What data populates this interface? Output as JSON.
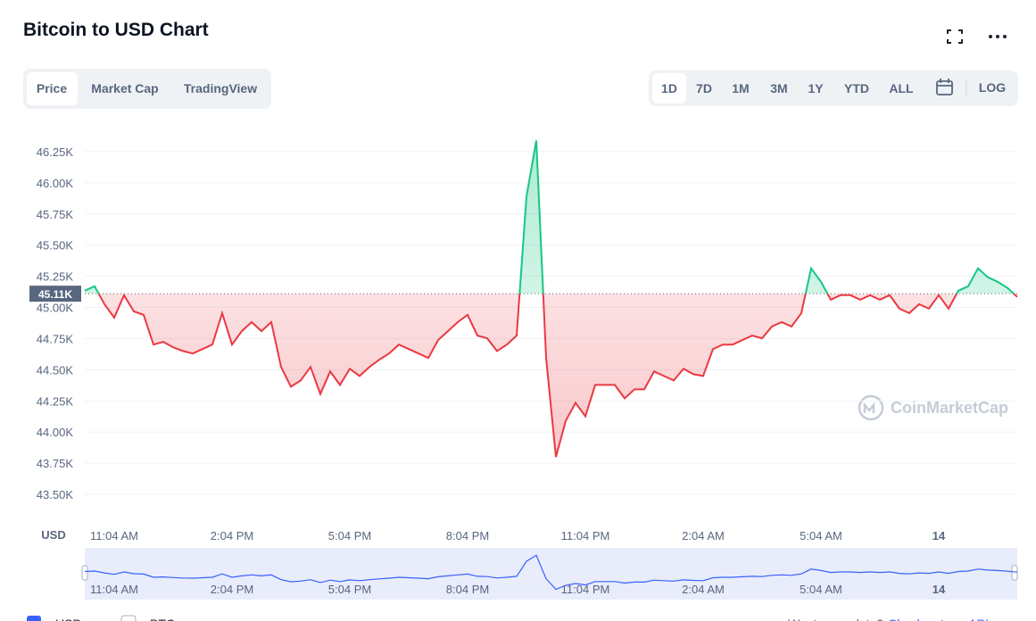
{
  "header": {
    "title": "Bitcoin to USD Chart"
  },
  "tabs": [
    "Price",
    "Market Cap",
    "TradingView"
  ],
  "ranges": [
    "1D",
    "7D",
    "1M",
    "3M",
    "1Y",
    "YTD",
    "ALL"
  ],
  "log": "LOG",
  "watermark": "CoinMarketCap",
  "chart_data": {
    "type": "line",
    "y_axis_label": "USD",
    "categories": [
      null,
      null,
      null,
      "11:04 AM",
      null,
      null,
      null,
      null,
      null,
      null,
      null,
      null,
      null,
      null,
      null,
      "2:04 PM",
      null,
      null,
      null,
      null,
      null,
      null,
      null,
      null,
      null,
      null,
      null,
      "5:04 PM",
      null,
      null,
      null,
      null,
      null,
      null,
      null,
      null,
      null,
      null,
      null,
      "8:04 PM",
      null,
      null,
      null,
      null,
      null,
      null,
      null,
      null,
      null,
      null,
      null,
      "11:04 PM",
      null,
      null,
      null,
      null,
      null,
      null,
      null,
      null,
      null,
      null,
      null,
      "2:04 AM",
      null,
      null,
      null,
      null,
      null,
      null,
      null,
      null,
      null,
      null,
      null,
      "5:04 AM",
      null,
      null,
      null,
      null,
      null,
      null,
      null,
      null,
      null,
      null,
      null,
      "14",
      null,
      null,
      null,
      null,
      null,
      null,
      null,
      null
    ],
    "series": [
      {
        "name": "USD",
        "up_color": "#16c784",
        "down_color": "#ea3943",
        "values": [
          45134,
          45170,
          45026,
          44918,
          45098,
          44968,
          44940,
          44702,
          44724,
          44680,
          44650,
          44630,
          44666,
          44702,
          44954,
          44702,
          44810,
          44882,
          44810,
          44882,
          44522,
          44364,
          44414,
          44522,
          44306,
          44486,
          44378,
          44508,
          44450,
          44522,
          44580,
          44630,
          44702,
          44666,
          44630,
          44594,
          44738,
          44810,
          44882,
          44940,
          44774,
          44752,
          44650,
          44702,
          44774,
          45890,
          46340,
          44594,
          43800,
          44090,
          44234,
          44126,
          44378,
          44378,
          44378,
          44270,
          44342,
          44342,
          44486,
          44450,
          44414,
          44508,
          44464,
          44450,
          44666,
          44702,
          44702,
          44738,
          44774,
          44752,
          44846,
          44882,
          44846,
          44954,
          45314,
          45206,
          45062,
          45098,
          45098,
          45062,
          45098,
          45062,
          45098,
          44990,
          44954,
          45026,
          44990,
          45098,
          44990,
          45134,
          45170,
          45314,
          45242,
          45206,
          45156,
          45084
        ]
      }
    ],
    "baseline": {
      "value": 45110,
      "label": "45.11K"
    },
    "navigator_color": "#3861fb",
    "ylim": [
      43300,
      46500
    ],
    "yticks": [
      {
        "value": 43500,
        "label": "43.50K"
      },
      {
        "value": 43750,
        "label": "43.75K"
      },
      {
        "value": 44000,
        "label": "44.00K"
      },
      {
        "value": 44250,
        "label": "44.25K"
      },
      {
        "value": 44500,
        "label": "44.50K"
      },
      {
        "value": 44750,
        "label": "44.75K"
      },
      {
        "value": 45000,
        "label": "45.00K"
      },
      {
        "value": 45250,
        "label": "45.25K"
      },
      {
        "value": 45500,
        "label": "45.50K"
      },
      {
        "value": 45750,
        "label": "45.75K"
      },
      {
        "value": 46000,
        "label": "46.00K"
      },
      {
        "value": 46250,
        "label": "46.25K"
      }
    ],
    "grid": true
  },
  "footer": {
    "legend_second": "BTC",
    "prompt": "Want more data?",
    "link": "Check out our API"
  }
}
